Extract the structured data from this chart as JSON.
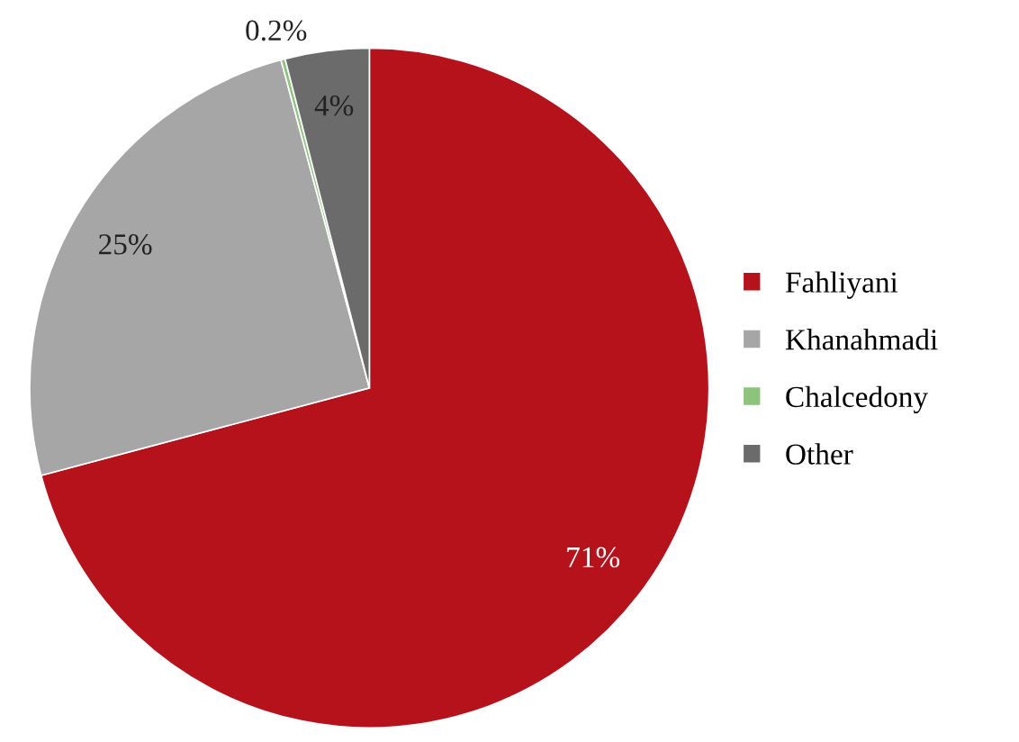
{
  "chart_data": {
    "type": "pie",
    "categories": [
      "Fahliyani",
      "Khanahmadi",
      "Chalcedony",
      "Other"
    ],
    "values": [
      71,
      25,
      0.2,
      4
    ],
    "colors": [
      "#b5121b",
      "#a6a6a6",
      "#8cc47c",
      "#6b6b6b"
    ],
    "value_labels": [
      "71%",
      "25%",
      "0.2%",
      "4%"
    ],
    "legend": "right"
  }
}
